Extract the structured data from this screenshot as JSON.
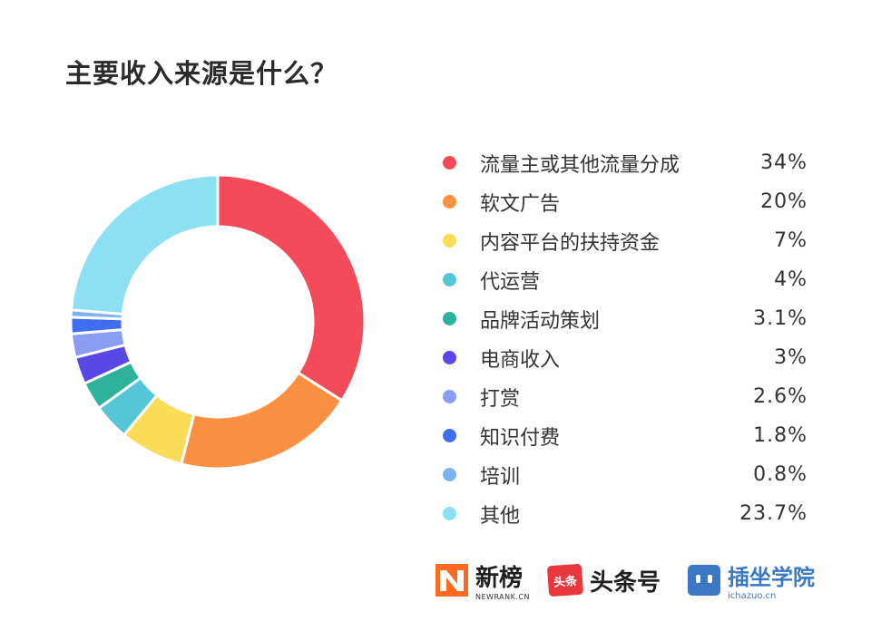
{
  "chart_data": {
    "type": "pie",
    "title": "主要收入来源是什么？",
    "donut": true,
    "legend_placement": "right",
    "categories": [
      "流量主或其他流量分成",
      "软文广告",
      "内容平台的扶持资金",
      "代运营",
      "品牌活动策划",
      "电商收入",
      "打赏",
      "知识付费",
      "培训",
      "其他"
    ],
    "values": [
      34,
      20,
      7,
      4,
      3.1,
      3,
      2.6,
      1.8,
      0.8,
      23.7
    ],
    "value_labels": [
      "34%",
      "20%",
      "7%",
      "4%",
      "3.1%",
      "3%",
      "2.6%",
      "1.8%",
      "0.8%",
      "23.7%"
    ],
    "colors": [
      "#f44b5a",
      "#fa9142",
      "#fcdb56",
      "#55c6d6",
      "#2fb29c",
      "#5a48e6",
      "#8a9df2",
      "#3f6ef0",
      "#7db2f0",
      "#8de0f2"
    ]
  },
  "footer": {
    "newrank_name": "新榜",
    "newrank_sub": "NEWRANK.CN",
    "toutiao_badge": "头条",
    "toutiao_name": "头条号",
    "chazuo_name": "插坐学院",
    "chazuo_sub": "ichazuo.cn"
  }
}
